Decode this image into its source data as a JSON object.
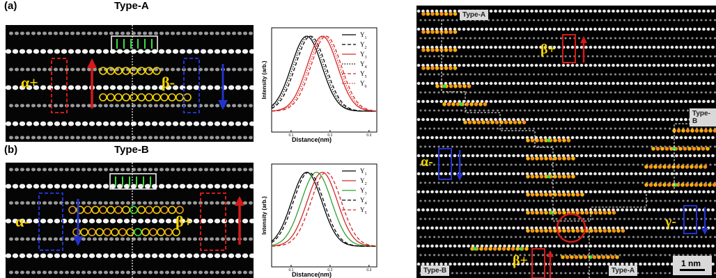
{
  "panel_a": {
    "letter": "(a)",
    "title": "Type-A",
    "label_left": "α+",
    "label_right": "β-",
    "chart_data": {
      "type": "line",
      "xlabel": "Distance(nm)",
      "ylabel": "Intensity (arb.)",
      "xticks": [
        "0.1",
        "0.2",
        "0.3"
      ],
      "xlim": [
        0.05,
        0.32
      ],
      "series": [
        {
          "name": "Y",
          "sub": "1",
          "color": "#000000",
          "dash": "solid",
          "center": 0.14
        },
        {
          "name": "Y",
          "sub": "2",
          "color": "#000000",
          "dash": "dashed",
          "center": 0.15
        },
        {
          "name": "Y",
          "sub": "3",
          "color": "#d62728",
          "dash": "solid",
          "center": 0.18
        },
        {
          "name": "Y",
          "sub": "4",
          "color": "#000000",
          "dash": "dotted",
          "center": 0.145
        },
        {
          "name": "Y",
          "sub": "5",
          "color": "#d62728",
          "dash": "dashed",
          "center": 0.19
        },
        {
          "name": "Y",
          "sub": "6",
          "color": "#d62728",
          "dash": "dotted",
          "center": 0.185
        }
      ]
    }
  },
  "panel_b": {
    "letter": "(b)",
    "title": "Type-B",
    "label_left": "α-",
    "label_right": "β+",
    "chart_data": {
      "type": "line",
      "xlabel": "Distance(nm)",
      "ylabel": "Intensity (arb.)",
      "xticks": [
        "0.1",
        "0.2",
        "0.3"
      ],
      "xlim": [
        0.05,
        0.32
      ],
      "series": [
        {
          "name": "Y",
          "sub": "1",
          "color": "#000000",
          "dash": "solid",
          "center": 0.14
        },
        {
          "name": "Y",
          "sub": "2",
          "color": "#d62728",
          "dash": "solid",
          "center": 0.18
        },
        {
          "name": "Y",
          "sub": "3",
          "color": "#2ca02c",
          "dash": "solid",
          "center": 0.165
        },
        {
          "name": "Y",
          "sub": "4",
          "color": "#000000",
          "dash": "dashed",
          "center": 0.145
        },
        {
          "name": "Y",
          "sub": "5",
          "color": "#d62728",
          "dash": "dashed",
          "center": 0.19
        }
      ]
    }
  },
  "right_panel": {
    "tag_type_a_top": "Type-A",
    "tag_type_b_right": "Type-B",
    "tag_type_b_bottom": "Type-B",
    "tag_type_a_bottom": "Type-A",
    "label_beta_top": "β+",
    "label_alpha": "α-",
    "label_gamma": "γ-",
    "label_beta_bottom": "β+",
    "scale_bar": "1 nm"
  }
}
